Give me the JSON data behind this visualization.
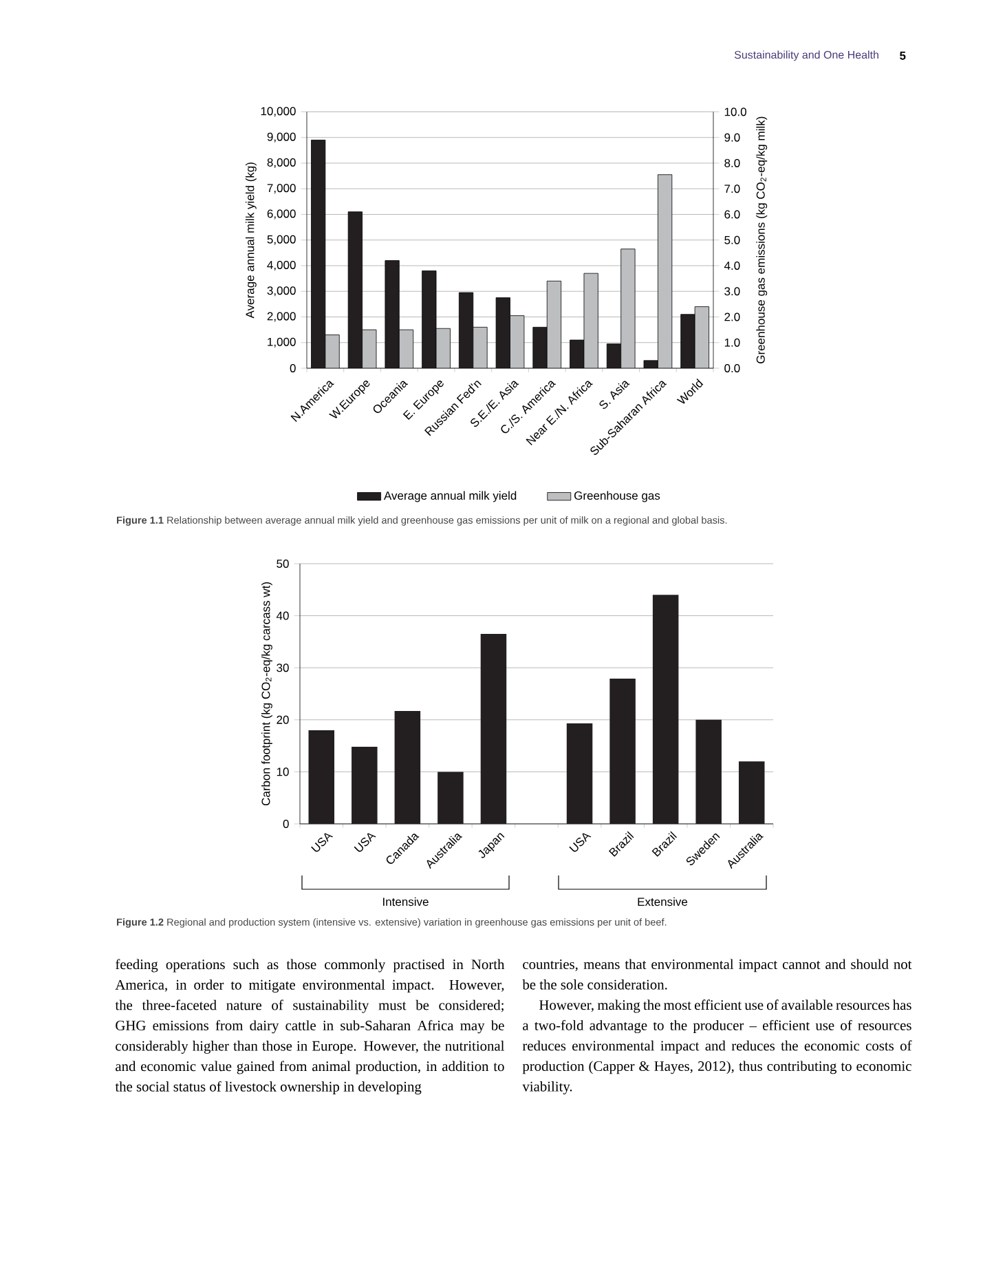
{
  "chart_data": [
    {
      "type": "bar",
      "categories": [
        "N.America",
        "W.Europe",
        "Oceania",
        "E. Europe",
        "Russian Fed'n",
        "S.E./E. Asia",
        "C./S. America",
        "Near E./N. Africa",
        "S. Asia",
        "Sub-Saharan Africa",
        "World"
      ],
      "series": [
        {
          "name": "Average annual milk yield",
          "color": "#231f20",
          "values": [
            8900,
            6100,
            4200,
            3800,
            2950,
            2750,
            1600,
            1100,
            950,
            300,
            2100
          ]
        },
        {
          "name": "Greenhouse gas",
          "color": "#bcbec0",
          "axis": "y2",
          "values": [
            1.3,
            1.5,
            1.5,
            1.55,
            1.6,
            2.05,
            3.4,
            3.7,
            4.65,
            7.55,
            2.4
          ]
        }
      ],
      "ylabel": "Average annual milk yield (kg)",
      "y2label": "Greenhouse gas emissions (kg CO$_{2}$-eq/kg milk)",
      "ylim": [
        0,
        10000
      ],
      "yticks": [
        0,
        {
          "value": 1000,
          "label": "1,000"
        },
        {
          "value": 2000,
          "label": "2,000"
        },
        {
          "value": 3000,
          "label": "3,000"
        },
        {
          "value": 4000,
          "label": "4,000"
        },
        {
          "value": 5000,
          "label": "5,000"
        },
        {
          "value": 6000,
          "label": "6,000"
        },
        {
          "value": 7000,
          "label": "7,000"
        },
        {
          "value": 8000,
          "label": "8,000"
        },
        {
          "value": 9000,
          "label": "9,000"
        },
        {
          "value": 10000,
          "label": "10,000"
        }
      ],
      "y2lim": [
        0,
        10
      ],
      "y2ticks": [
        {
          "value": 0,
          "label": "0.0"
        },
        {
          "value": 1,
          "label": "1.0"
        },
        {
          "value": 2,
          "label": "2.0"
        },
        {
          "value": 3,
          "label": "3.0"
        },
        {
          "value": 4,
          "label": "4.0"
        },
        {
          "value": 5,
          "label": "5.0"
        },
        {
          "value": 6,
          "label": "6.0"
        },
        {
          "value": 7,
          "label": "7.0"
        },
        {
          "value": 8,
          "label": "8.0"
        },
        {
          "value": 9,
          "label": "9.0"
        },
        {
          "value": 10,
          "label": "10.0"
        }
      ],
      "grid": "y",
      "legend": "bottom",
      "annotations": [
        "Sustainability and One Health",
        "5",
        "**Figure 1.1** Relationship between average annual milk yield and greenhouse gas emissions per unit of milk on a regional and global basis."
      ]
    },
    {
      "type": "bar",
      "categories": [
        "USA",
        "USA",
        "Canada",
        "Australia",
        "Japan",
        null,
        "USA",
        "Brazil",
        "Brazil",
        "Sweden",
        "Australia"
      ],
      "values": [
        18,
        14.8,
        21.7,
        10,
        36.5,
        null,
        19.3,
        27.9,
        44,
        20,
        12
      ],
      "color": "#231f20",
      "ylabel": "Carbon footprint (kg CO$_{2}$-eq/kg carcass wt)",
      "ylim": [
        0,
        50
      ],
      "yticks": [
        0,
        10,
        20,
        30,
        40,
        50
      ],
      "grid": "y",
      "annotations": [
        "Intensive",
        "Extensive",
        "**Figure 1.2** Regional and production system (intensive vs. extensive) variation in greenhouse gas emissions per unit of beef.",
        "feeding operations such as those commonly practised in North America, in order to mitigate environmental impact. However, the three-faceted nature of sustainability must be considered; GHG emissions from dairy cattle in sub-Saharan Africa may be considerably higher than those in Europe. However, the nutritional and economic value gained from animal production, in addition to the social status of livestock ownership in developing",
        "countries, means that environmental impact cannot and should not be the sole consideration.",
        "However, making the most efficient use of available resources has a two-fold advantage to the producer – efficient use of resources reduces environmental impact and reduces the economic costs of production (Capper & Hayes, 2012), thus contributing to economic viability."
      ]
    }
  ]
}
